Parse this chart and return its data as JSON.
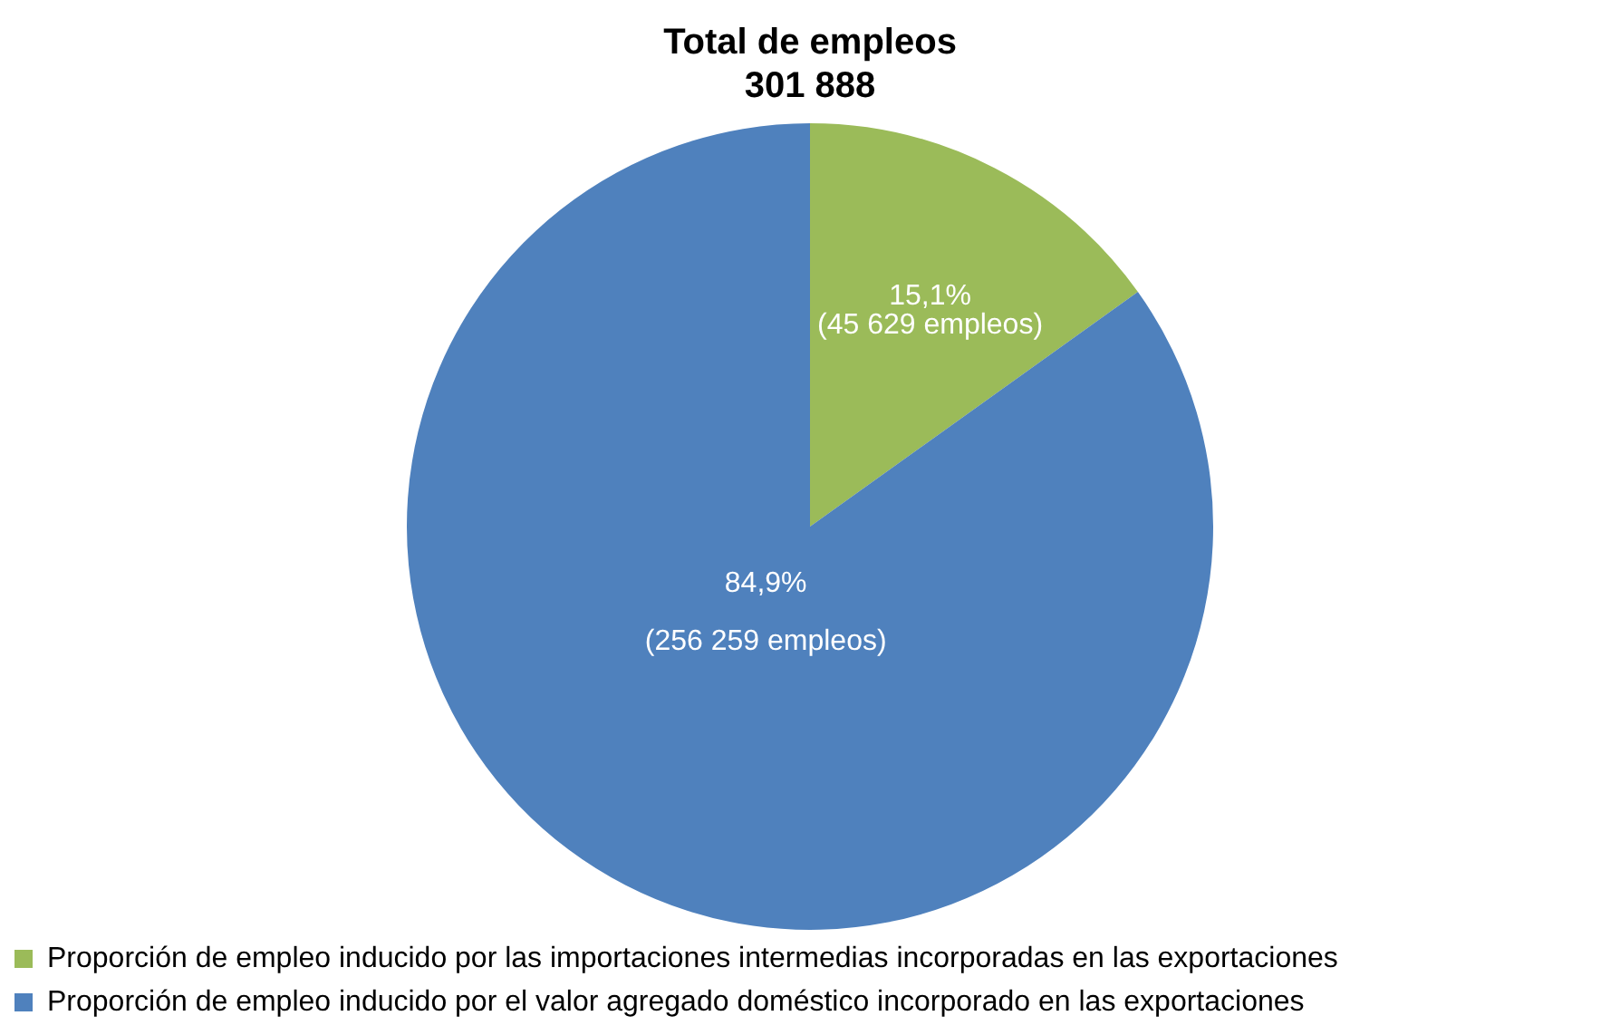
{
  "chart_data": {
    "type": "pie",
    "title": "Total de empleos\n301 888",
    "categories": [
      "Proporción de empleo inducido por las importaciones intermedias incorporadas en las exportaciones",
      "Proporción de empleo inducido por el valor agregado doméstico incorporado en las exportaciones"
    ],
    "values": [
      45629,
      256259
    ],
    "colors": [
      "#9bbb59",
      "#4f81bd"
    ],
    "value_labels": [
      "15,1%\n(45 629 empleos)",
      "84,9%\n\n(256 259 empleos)"
    ],
    "legend": "bottom"
  }
}
